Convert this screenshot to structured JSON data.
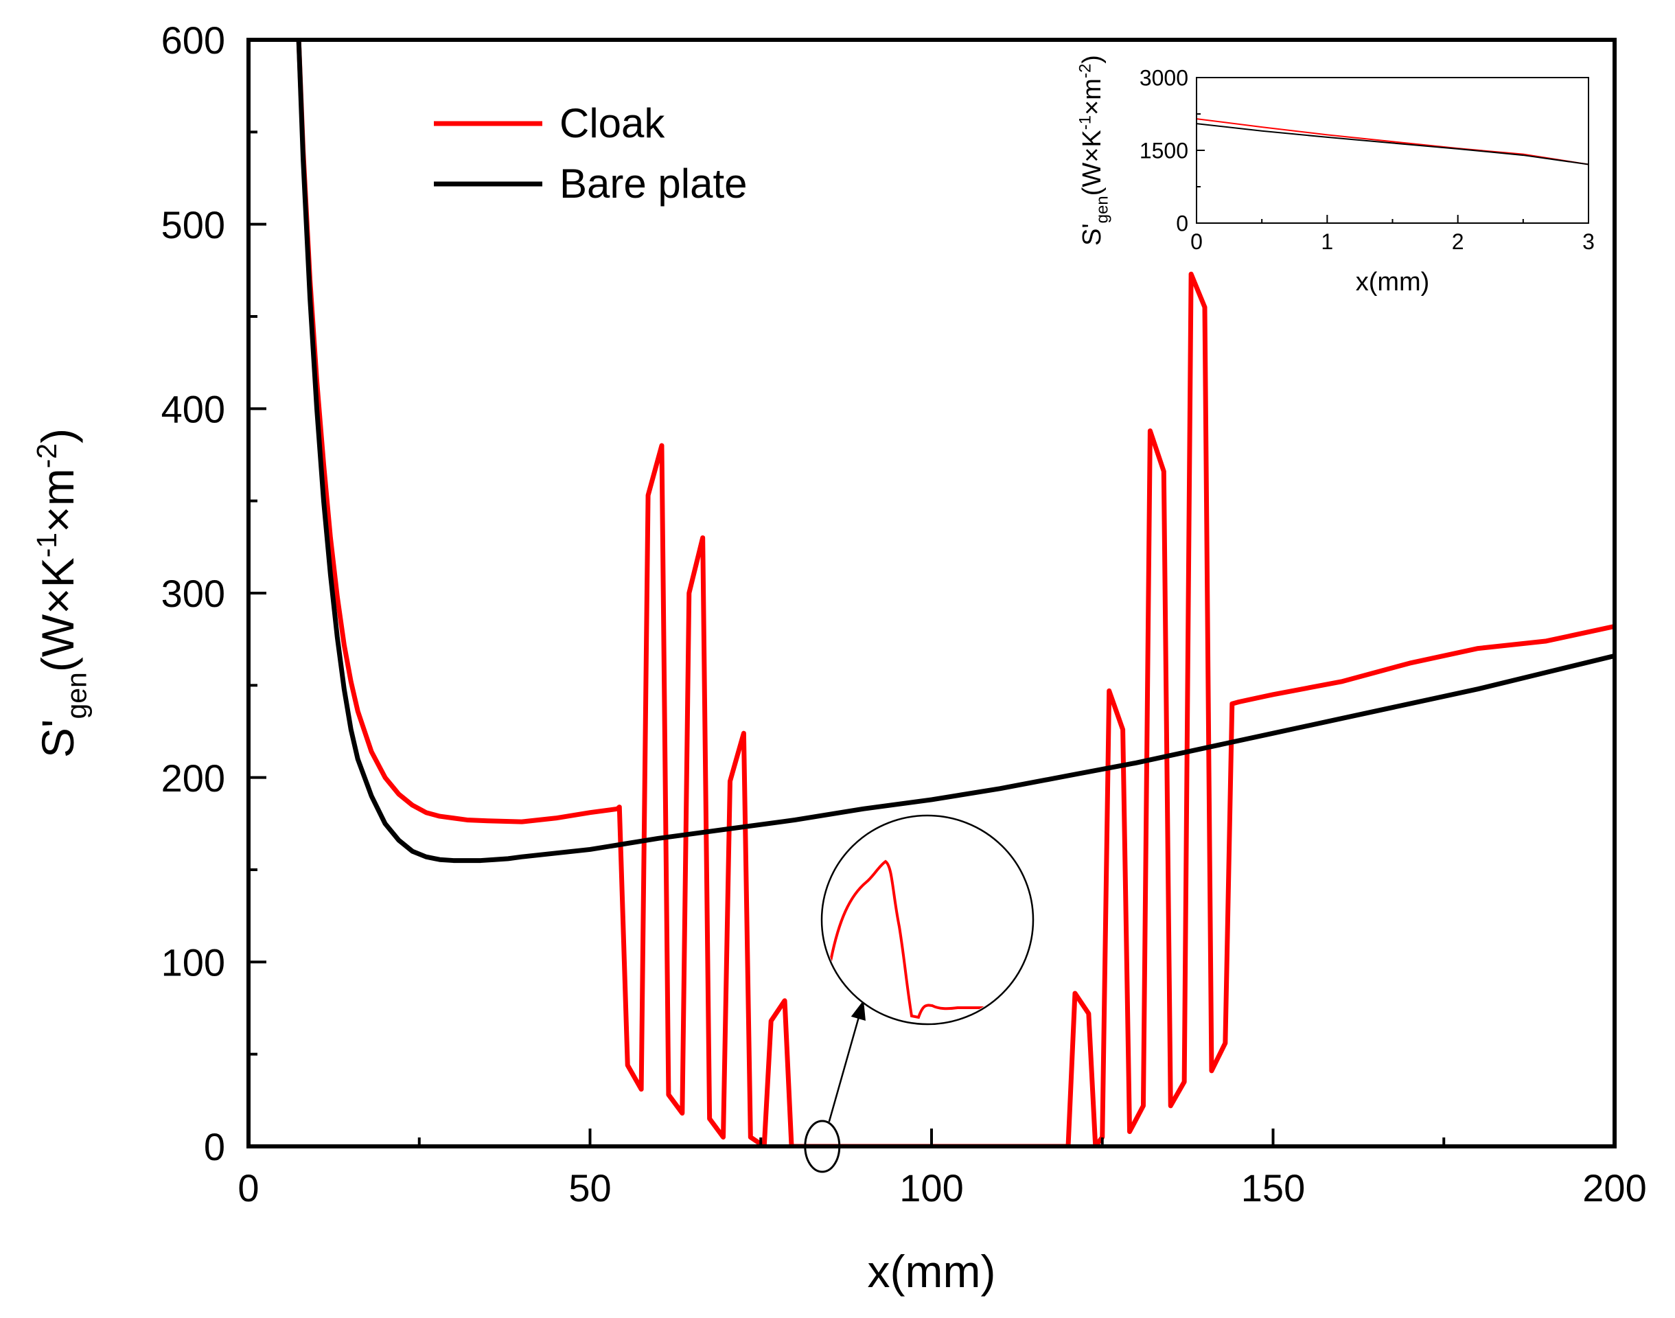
{
  "chart_data": [
    {
      "type": "line",
      "title": "",
      "xlabel": "x(mm)",
      "ylabel_main": "S'",
      "ylabel_sub": "gen",
      "ylabel_units_open": "(W×K",
      "ylabel_exp1": "-1",
      "ylabel_mid": "×m",
      "ylabel_exp2": "-2",
      "ylabel_close": ")",
      "xlim": [
        0,
        200
      ],
      "ylim": [
        0,
        600
      ],
      "xticks": [
        0,
        50,
        100,
        150,
        200
      ],
      "yticks": [
        0,
        100,
        200,
        300,
        400,
        500,
        600
      ],
      "xtick_labels": [
        "0",
        "50",
        "100",
        "150",
        "200"
      ],
      "ytick_labels": [
        "0",
        "100",
        "200",
        "300",
        "400",
        "500",
        "600"
      ],
      "legend": {
        "position": "top-left",
        "entries": [
          "Cloak",
          "Bare plate"
        ]
      },
      "series": [
        {
          "name": "Cloak",
          "color": "#ff0000",
          "x": [
            7.3,
            8,
            9,
            10,
            11,
            12,
            13,
            14,
            15,
            16,
            18,
            20,
            22,
            24,
            26,
            28,
            30,
            32,
            35,
            40,
            45,
            50,
            54,
            54.3,
            55.5,
            57.5,
            58.5,
            60.5,
            61.5,
            63.5,
            64.5,
            66.5,
            67.5,
            69.5,
            70.5,
            72.5,
            73.5,
            75.5,
            76.5,
            78.5,
            79.5,
            82,
            100,
            120,
            121,
            123,
            124,
            125,
            126,
            128,
            129,
            131,
            132,
            134,
            135,
            137,
            138,
            140,
            141,
            143,
            144,
            145,
            150,
            160,
            170,
            180,
            190,
            200
          ],
          "y": [
            605,
            540,
            470,
            415,
            370,
            330,
            298,
            272,
            252,
            236,
            214,
            200,
            191,
            185,
            181,
            179,
            178,
            177,
            176.5,
            176,
            178,
            181,
            183,
            184,
            44,
            31,
            353,
            380,
            28,
            18,
            300,
            330,
            15,
            5,
            198,
            224,
            5,
            0,
            68,
            79,
            0,
            0,
            0,
            0,
            83,
            72,
            0,
            5,
            247,
            226,
            8,
            22,
            388,
            366,
            22,
            35,
            473,
            455,
            41,
            56,
            240,
            241,
            245,
            252,
            262,
            270,
            274,
            282
          ]
        },
        {
          "name": "Bare plate",
          "color": "#000000",
          "x": [
            7.3,
            8,
            9,
            10,
            11,
            12,
            13,
            14,
            15,
            16,
            18,
            20,
            22,
            24,
            26,
            28,
            30,
            32,
            34,
            36,
            38,
            40,
            45,
            50,
            55,
            60,
            70,
            80,
            90,
            100,
            110,
            120,
            130,
            140,
            150,
            160,
            170,
            180,
            190,
            200
          ],
          "y": [
            605,
            535,
            460,
            400,
            350,
            310,
            276,
            248,
            226,
            210,
            190,
            175,
            166,
            160,
            157,
            155.5,
            155,
            155,
            155,
            155.5,
            156,
            157,
            159,
            161,
            164,
            167,
            172,
            177,
            183,
            188,
            194,
            201,
            208,
            216,
            224,
            232,
            240,
            248,
            257,
            266
          ]
        }
      ],
      "annotation": "zoom circle with arrow near x≈84 mm, y≈0"
    },
    {
      "type": "line",
      "title": "",
      "xlabel": "x(mm)",
      "ylabel_main": "S'",
      "ylabel_sub": "gen",
      "ylabel_units_open": "(W×K",
      "ylabel_exp1": "-1",
      "ylabel_mid": "×m",
      "ylabel_exp2": "-2",
      "ylabel_close": ")",
      "xlim": [
        0,
        3
      ],
      "ylim": [
        0,
        3000
      ],
      "xticks": [
        0,
        1,
        2,
        3
      ],
      "yticks": [
        0,
        1500,
        3000
      ],
      "xtick_labels": [
        "0",
        "1",
        "2",
        "3"
      ],
      "ytick_labels": [
        "0",
        "1500",
        "3000"
      ],
      "series": [
        {
          "name": "Cloak",
          "color": "#ff0000",
          "x": [
            0,
            0.5,
            1,
            1.5,
            2,
            2.5,
            3
          ],
          "y": [
            2150,
            1980,
            1820,
            1680,
            1540,
            1420,
            1210
          ]
        },
        {
          "name": "Bare plate",
          "color": "#000000",
          "x": [
            0,
            0.5,
            1,
            1.5,
            2,
            2.5,
            3
          ],
          "y": [
            2050,
            1900,
            1770,
            1650,
            1530,
            1400,
            1210
          ]
        }
      ]
    }
  ]
}
